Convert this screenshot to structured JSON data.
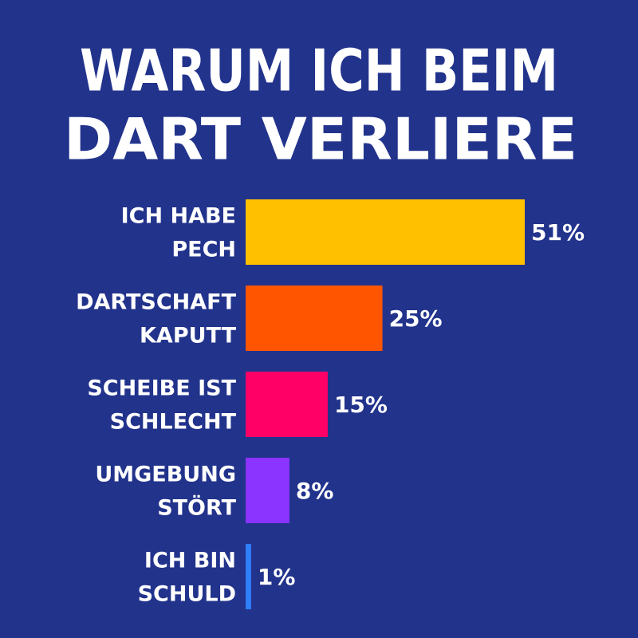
{
  "chart_data": {
    "type": "bar",
    "orientation": "horizontal",
    "title": [
      "WARUM ICH BEIM",
      "DART VERLIERE"
    ],
    "categories": [
      [
        "ICH HABE",
        "PECH"
      ],
      [
        "DARTSCHAFT",
        "KAPUTT"
      ],
      [
        "SCHEIBE IST",
        "SCHLECHT"
      ],
      [
        "UMGEBUNG",
        "STÖRT"
      ],
      [
        "ICH BIN",
        "SCHULD"
      ]
    ],
    "values": [
      51,
      25,
      15,
      8,
      1
    ],
    "value_labels": [
      "51%",
      "25%",
      "15%",
      "8%",
      "1%"
    ],
    "colors": [
      "#ffc000",
      "#ff5500",
      "#ff0066",
      "#8b33ff",
      "#2f80ff"
    ]
  }
}
